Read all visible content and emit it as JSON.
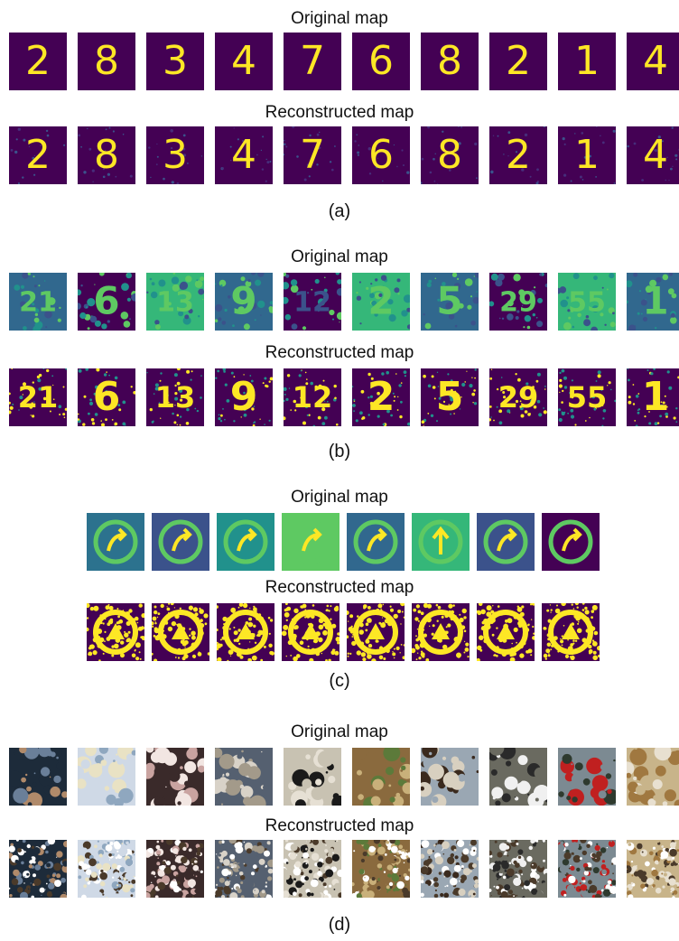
{
  "panels": [
    {
      "id": "a",
      "original_label": "Original map",
      "reconstructed_label": "Reconstructed map",
      "caption": "(a)",
      "style": "mnist",
      "digits": [
        "2",
        "8",
        "3",
        "4",
        "7",
        "6",
        "8",
        "2",
        "1",
        "4"
      ]
    },
    {
      "id": "b",
      "original_label": "Original map",
      "reconstructed_label": "Reconstructed map",
      "caption": "(b)",
      "style": "svhn",
      "digits": [
        "21",
        "6",
        "13",
        "9",
        "12",
        "2",
        "5",
        "29",
        "55",
        "1"
      ]
    },
    {
      "id": "c",
      "original_label": "Original map",
      "reconstructed_label": "Reconstructed map",
      "caption": "(c)",
      "style": "signs",
      "digits": [
        "",
        "",
        "",
        "",
        "",
        "↑",
        "",
        ""
      ]
    },
    {
      "id": "d",
      "original_label": "Original map",
      "reconstructed_label": "Reconstructed map",
      "caption": "(d)",
      "style": "cifar",
      "digits": [
        "",
        "",
        "",
        "",
        "",
        "",
        "",
        "",
        "",
        ""
      ]
    }
  ],
  "colors": {
    "viridis_dark": "#440154",
    "viridis_mid": "#21918c",
    "viridis_yellow": "#fde725",
    "viridis_green": "#5ec962"
  }
}
